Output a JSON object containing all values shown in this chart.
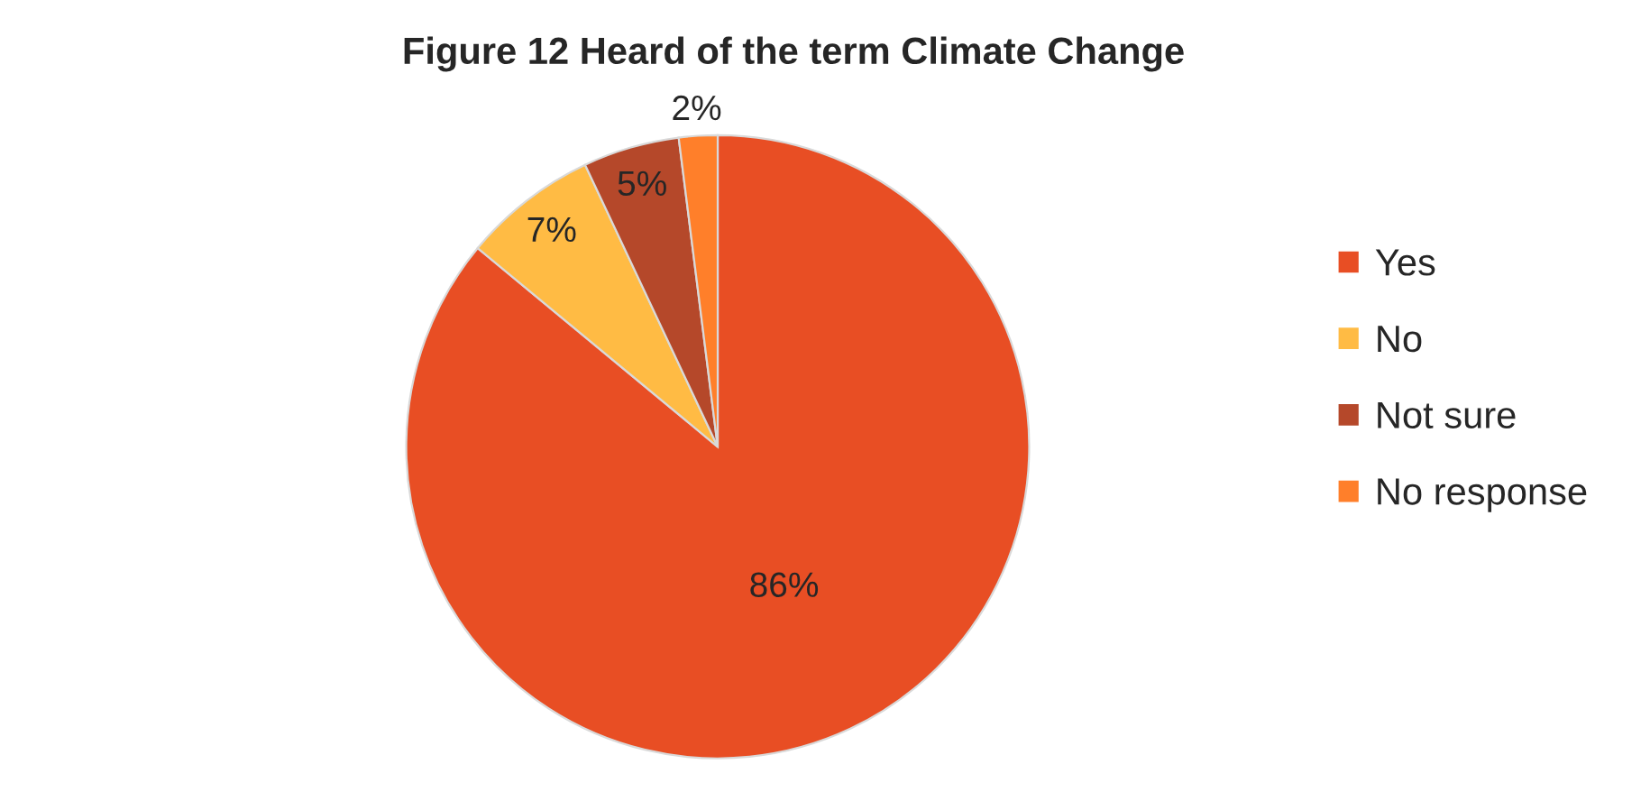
{
  "chart_data": {
    "type": "pie",
    "title": "Figure 12 Heard of the term Climate Change",
    "categories": [
      "Yes",
      "No",
      "Not sure",
      "No response"
    ],
    "values": [
      86,
      7,
      5,
      2
    ],
    "colors": [
      "#e84e24",
      "#ffbb44",
      "#b5482a",
      "#ff7f2a"
    ],
    "value_labels": [
      "86%",
      "7%",
      "5%",
      "2%"
    ],
    "legend": "right"
  }
}
